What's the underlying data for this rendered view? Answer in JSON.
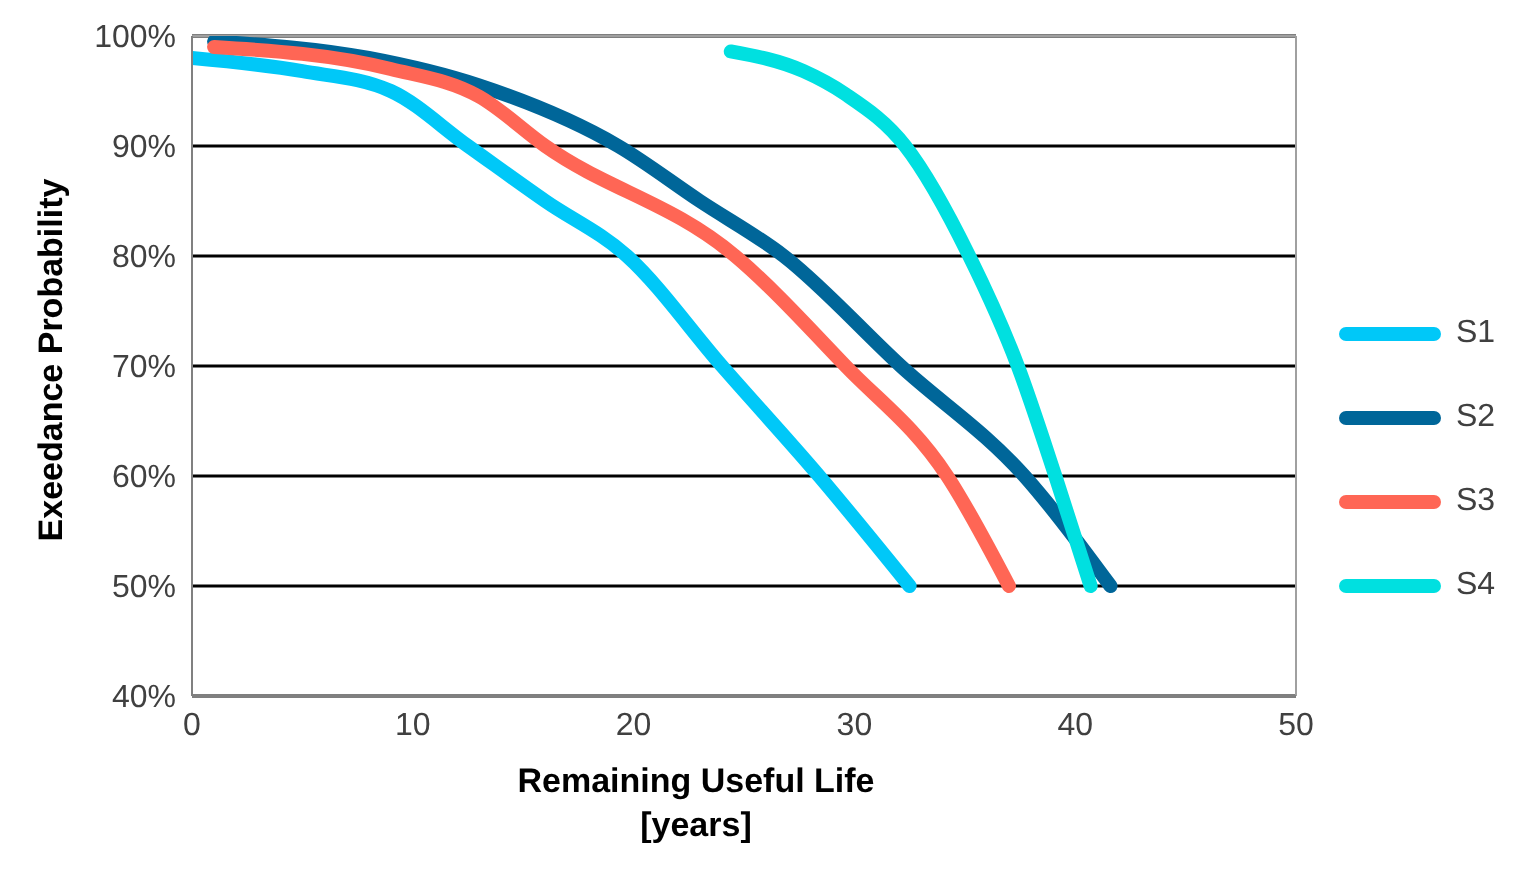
{
  "chart_data": {
    "type": "line",
    "xlabel": "Remaining Useful Life [years]",
    "ylabel": "Exeedance Probability",
    "xlim": [
      0,
      50
    ],
    "xticks": [
      0,
      10,
      20,
      30,
      40,
      50
    ],
    "ylim": [
      40,
      100
    ],
    "yticks": [
      {
        "value": 40,
        "label": "40%"
      },
      {
        "value": 50,
        "label": "50%"
      },
      {
        "value": 60,
        "label": "60%"
      },
      {
        "value": 70,
        "label": "70%"
      },
      {
        "value": 80,
        "label": "80%"
      },
      {
        "value": 90,
        "label": "90%"
      },
      {
        "value": 100,
        "label": "100%"
      }
    ],
    "grid": "y",
    "legend": "right",
    "marker": "none",
    "line_style": "solid",
    "series": [
      {
        "name": "S1",
        "color": "#00c8f8",
        "x": [
          0,
          5,
          9,
          12.5,
          16,
          19.7,
          24,
          28.4,
          32.5
        ],
        "values": [
          98,
          96.8,
          95,
          90,
          85,
          80,
          70,
          60,
          50
        ]
      },
      {
        "name": "S2",
        "color": "#006699",
        "x": [
          1,
          8,
          13,
          19.3,
          23,
          26.8,
          32.1,
          37.7,
          41.6
        ],
        "values": [
          99.5,
          98,
          95.5,
          90,
          85,
          80,
          70,
          60,
          50
        ]
      },
      {
        "name": "S3",
        "color": "#ff6655",
        "x": [
          1,
          9,
          13,
          16,
          24.6,
          29.6,
          34.2,
          37
        ],
        "values": [
          99,
          97,
          94.5,
          90,
          80,
          70,
          60,
          50
        ]
      },
      {
        "name": "S4",
        "color": "#00e0e0",
        "x": [
          24.4,
          27.7,
          29.6,
          32.3,
          35.2,
          37.4,
          39.1,
          40.7
        ],
        "values": [
          98.6,
          96.8,
          94.7,
          90,
          80,
          70,
          60,
          50
        ]
      }
    ]
  }
}
